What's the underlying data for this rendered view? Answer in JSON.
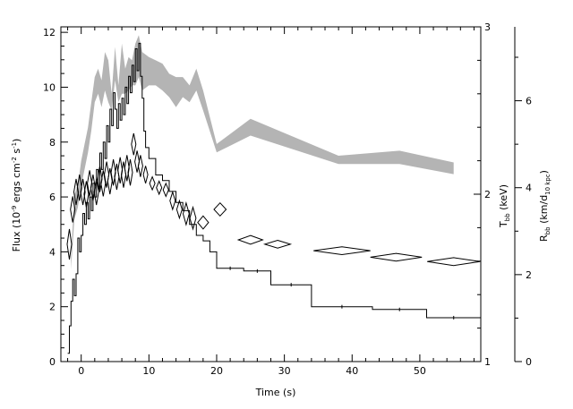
{
  "chart_data": {
    "type": "line",
    "xlabel": "Time (s)",
    "xlim": [
      -3,
      59
    ],
    "x_ticks": [
      0,
      10,
      20,
      30,
      40,
      50
    ],
    "x_tick_labels": [
      "0",
      "10",
      "20",
      "30",
      "40",
      "50"
    ],
    "y_left": {
      "label": "Flux (10⁻⁹ ergs cm⁻² s⁻¹)",
      "label_parts": {
        "pre": "Flux (10",
        "exp1": "-9",
        "mid1": " ergs cm",
        "exp2": "-2",
        "mid2": " s",
        "exp3": "-1",
        "post": ")"
      },
      "ylim": [
        0,
        12.2
      ],
      "ticks": [
        0,
        2,
        4,
        6,
        8,
        10,
        12
      ],
      "tick_labels": [
        "0",
        "2",
        "4",
        "6",
        "8",
        "10",
        "12"
      ]
    },
    "y_right_temp": {
      "label": "T_bb (keV)",
      "label_parts": {
        "main": "T",
        "sub": "bb",
        "post": " (keV)"
      },
      "ylim": [
        1,
        3
      ],
      "ticks": [
        1,
        2,
        3
      ],
      "tick_labels": [
        "1",
        "2",
        "3"
      ]
    },
    "y_right_radius": {
      "label": "R_bb (km/d_10 kpc)",
      "label_parts": {
        "main": "R",
        "sub": "bb",
        "mid": " (km/d",
        "sub2": "10 kpc",
        "post": ")"
      },
      "ylim": [
        0,
        7.7
      ],
      "ticks": [
        0,
        2,
        4,
        6
      ],
      "tick_labels": [
        "0",
        "2",
        "4",
        "6"
      ]
    },
    "series": [
      {
        "kind": "flux-histogram",
        "axis": "left",
        "color": "#000000",
        "points": [
          [
            -2.0,
            0.3
          ],
          [
            -1.75,
            1.3
          ],
          [
            -1.5,
            2.2
          ],
          [
            -1.25,
            3.0
          ],
          [
            -1.0,
            2.4
          ],
          [
            -0.75,
            3.2
          ],
          [
            -0.5,
            4.5
          ],
          [
            -0.25,
            4.0
          ],
          [
            0.0,
            4.6
          ],
          [
            0.25,
            5.4
          ],
          [
            0.5,
            5.0
          ],
          [
            0.75,
            5.8
          ],
          [
            1.0,
            5.2
          ],
          [
            1.25,
            6.0
          ],
          [
            1.5,
            5.5
          ],
          [
            1.75,
            6.5
          ],
          [
            2.0,
            6.0
          ],
          [
            2.25,
            7.0
          ],
          [
            2.5,
            6.3
          ],
          [
            2.75,
            7.6
          ],
          [
            3.0,
            7.0
          ],
          [
            3.25,
            8.0
          ],
          [
            3.5,
            7.4
          ],
          [
            3.75,
            8.6
          ],
          [
            4.0,
            8.0
          ],
          [
            4.25,
            9.2
          ],
          [
            4.5,
            8.6
          ],
          [
            4.75,
            9.8
          ],
          [
            5.0,
            9.2
          ],
          [
            5.25,
            8.5
          ],
          [
            5.5,
            9.4
          ],
          [
            5.75,
            8.8
          ],
          [
            6.0,
            9.6
          ],
          [
            6.25,
            9.0
          ],
          [
            6.5,
            10.0
          ],
          [
            6.75,
            9.4
          ],
          [
            7.0,
            10.4
          ],
          [
            7.25,
            9.8
          ],
          [
            7.5,
            10.8
          ],
          [
            7.75,
            10.2
          ],
          [
            8.0,
            11.4
          ],
          [
            8.25,
            10.6
          ],
          [
            8.5,
            11.6
          ],
          [
            8.75,
            10.4
          ],
          [
            9.0,
            9.6
          ],
          [
            9.25,
            8.4
          ],
          [
            9.5,
            7.8
          ],
          [
            10.0,
            7.4
          ],
          [
            11.0,
            6.8
          ],
          [
            12.0,
            6.6
          ],
          [
            13.0,
            6.2
          ],
          [
            14.0,
            5.8
          ],
          [
            15.0,
            5.5
          ],
          [
            16.0,
            5.0
          ],
          [
            17.0,
            4.6
          ],
          [
            18.0,
            4.4
          ],
          [
            19.0,
            4.0
          ],
          [
            20.0,
            3.4
          ],
          [
            22.0,
            3.35
          ],
          [
            24.0,
            3.3
          ],
          [
            26.0,
            3.2
          ],
          [
            28.0,
            2.8
          ],
          [
            34.0,
            2.0
          ],
          [
            43.0,
            1.9
          ],
          [
            51.0,
            1.6
          ],
          [
            59.0,
            1.6
          ]
        ],
        "steps": [
          [
            20.0,
            24.0,
            3.4
          ],
          [
            24.0,
            28.0,
            3.3
          ],
          [
            28.0,
            34.0,
            2.8
          ],
          [
            34.0,
            43.0,
            2.0
          ],
          [
            43.0,
            51.0,
            1.9
          ],
          [
            51.0,
            59.0,
            1.6
          ]
        ]
      },
      {
        "kind": "temperature-band",
        "axis": "right-temp",
        "color": "#b4b4b4",
        "x": [
          -1.5,
          -1.0,
          -0.5,
          0.0,
          0.5,
          1.0,
          1.5,
          2.0,
          2.5,
          3.0,
          3.5,
          4.0,
          4.5,
          5.0,
          5.5,
          6.0,
          6.5,
          7.0,
          7.5,
          8.0,
          8.5,
          9.0,
          10.0,
          11.0,
          12.0,
          13.0,
          14.0,
          15.0,
          16.0,
          17.0,
          18.0,
          20.0,
          25.0,
          38.0,
          47.0,
          55.0
        ],
        "upper": [
          1.62,
          2.0,
          2.05,
          2.2,
          2.3,
          2.4,
          2.55,
          2.7,
          2.75,
          2.68,
          2.85,
          2.8,
          2.6,
          2.88,
          2.65,
          2.9,
          2.75,
          2.82,
          2.8,
          2.9,
          2.95,
          2.85,
          2.82,
          2.8,
          2.78,
          2.72,
          2.7,
          2.7,
          2.65,
          2.75,
          2.62,
          2.3,
          2.45,
          2.23,
          2.26,
          2.19
        ],
        "lower": [
          1.55,
          1.85,
          1.92,
          2.05,
          2.15,
          2.25,
          2.38,
          2.55,
          2.6,
          2.52,
          2.62,
          2.55,
          2.5,
          2.68,
          2.55,
          2.6,
          2.6,
          2.62,
          2.65,
          2.65,
          2.7,
          2.62,
          2.65,
          2.65,
          2.62,
          2.58,
          2.52,
          2.58,
          2.55,
          2.62,
          2.5,
          2.25,
          2.35,
          2.18,
          2.18,
          2.12
        ]
      },
      {
        "kind": "radius-diamonds",
        "axis": "right-radius",
        "color": "#000000",
        "points": [
          [
            -1.75,
            2.7,
            0.15,
            0.35
          ],
          [
            -1.25,
            3.5,
            0.12,
            0.3
          ],
          [
            -0.75,
            3.9,
            0.12,
            0.3
          ],
          [
            -0.25,
            4.0,
            0.12,
            0.3
          ],
          [
            0.25,
            3.9,
            0.12,
            0.3
          ],
          [
            0.75,
            3.85,
            0.12,
            0.3
          ],
          [
            1.25,
            4.1,
            0.12,
            0.3
          ],
          [
            1.75,
            4.0,
            0.12,
            0.3
          ],
          [
            2.25,
            3.9,
            0.12,
            0.3
          ],
          [
            2.75,
            4.2,
            0.12,
            0.3
          ],
          [
            3.25,
            4.1,
            0.12,
            0.3
          ],
          [
            3.75,
            4.3,
            0.12,
            0.3
          ],
          [
            4.25,
            4.15,
            0.12,
            0.3
          ],
          [
            4.75,
            4.35,
            0.12,
            0.3
          ],
          [
            5.25,
            4.25,
            0.12,
            0.3
          ],
          [
            5.75,
            4.4,
            0.12,
            0.3
          ],
          [
            6.25,
            4.3,
            0.12,
            0.3
          ],
          [
            6.75,
            4.45,
            0.12,
            0.3
          ],
          [
            7.25,
            4.35,
            0.12,
            0.3
          ],
          [
            7.75,
            5.0,
            0.2,
            0.25
          ],
          [
            8.25,
            4.6,
            0.15,
            0.25
          ],
          [
            8.75,
            4.5,
            0.15,
            0.25
          ],
          [
            9.5,
            4.3,
            0.25,
            0.2
          ],
          [
            10.5,
            4.1,
            0.4,
            0.15
          ],
          [
            11.5,
            4.0,
            0.4,
            0.15
          ],
          [
            12.5,
            3.95,
            0.4,
            0.15
          ],
          [
            13.5,
            3.7,
            0.4,
            0.2
          ],
          [
            14.5,
            3.5,
            0.4,
            0.2
          ],
          [
            15.5,
            3.4,
            0.45,
            0.25
          ],
          [
            16.5,
            3.3,
            0.45,
            0.25
          ],
          [
            18.0,
            3.2,
            0.8,
            0.15
          ],
          [
            20.5,
            3.5,
            0.9,
            0.15
          ],
          [
            25.0,
            2.8,
            1.8,
            0.1
          ],
          [
            29.0,
            2.7,
            1.9,
            0.09
          ],
          [
            38.5,
            2.55,
            4.2,
            0.09
          ],
          [
            46.5,
            2.4,
            3.8,
            0.09
          ],
          [
            55.0,
            2.3,
            3.9,
            0.09
          ]
        ]
      }
    ]
  }
}
